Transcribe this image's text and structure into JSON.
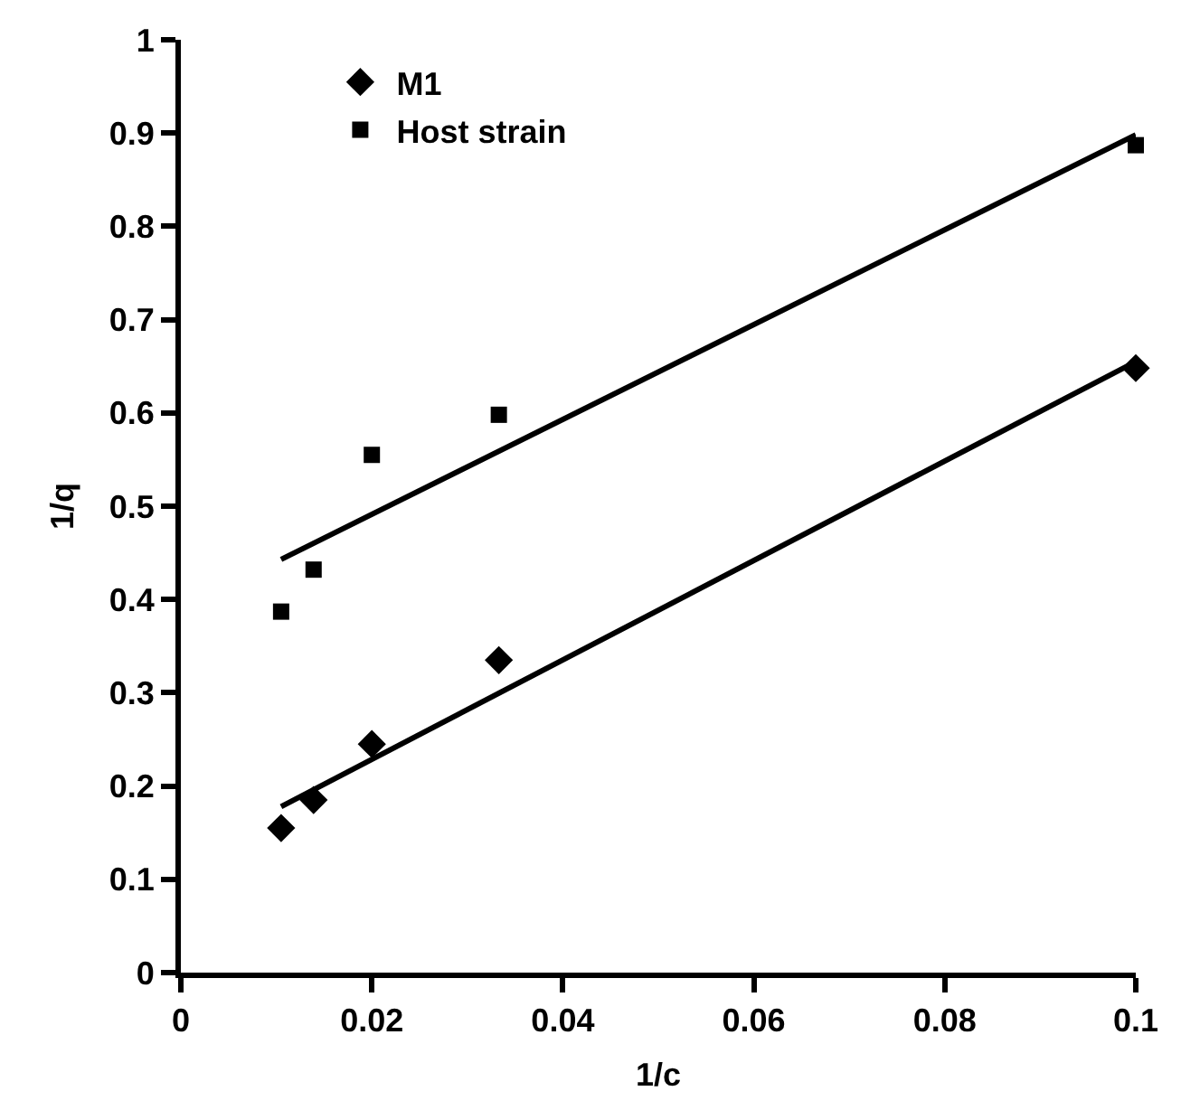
{
  "chart_data": {
    "type": "scatter",
    "xlabel": "1/c",
    "ylabel": "1/q",
    "xlim": [
      0,
      0.1
    ],
    "xticks": [
      0,
      0.02,
      0.04,
      0.06,
      0.08,
      0.1
    ],
    "ylim": [
      0,
      1
    ],
    "yticks": [
      0,
      0.1,
      0.2,
      0.3,
      0.4,
      0.5,
      0.6,
      0.7,
      0.8,
      0.9,
      1
    ],
    "legend": "top left",
    "series": [
      {
        "name": "M1",
        "marker": "diamond",
        "color": "#000000",
        "x": [
          0.0105,
          0.0139,
          0.02,
          0.0333,
          0.1
        ],
        "values": [
          0.155,
          0.185,
          0.245,
          0.335,
          0.648
        ]
      },
      {
        "name": "Host strain",
        "marker": "square",
        "color": "#000000",
        "x": [
          0.0105,
          0.0139,
          0.02,
          0.0333,
          0.1
        ],
        "values": [
          0.387,
          0.432,
          0.555,
          0.598,
          0.887
        ]
      },
      {
        "type": "line",
        "marker": "none",
        "line_style": "solid",
        "color": "#000000",
        "x": [
          0.0105,
          0.1
        ],
        "values": [
          0.178,
          0.655
        ]
      },
      {
        "type": "line",
        "marker": "none",
        "line_style": "solid",
        "color": "#000000",
        "x": [
          0.0105,
          0.1
        ],
        "values": [
          0.443,
          0.898
        ]
      }
    ]
  }
}
